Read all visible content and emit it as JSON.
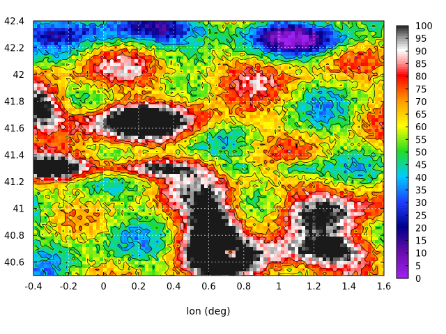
{
  "chart_data": {
    "type": "heatmap",
    "title": "",
    "xlabel": "lon (deg)",
    "ylabel": "",
    "xlim": [
      -0.4,
      1.6
    ],
    "ylim": [
      40.5,
      42.4
    ],
    "x_ticks": [
      "-0.4",
      "-0.2",
      "0",
      "0.2",
      "0.4",
      "0.6",
      "0.8",
      "1",
      "1.2",
      "1.4",
      "1.6"
    ],
    "y_ticks": [
      "40.6",
      "40.8",
      "41",
      "41.2",
      "41.4",
      "41.6",
      "41.8",
      "42",
      "42.2",
      "42.4"
    ],
    "grid": true,
    "colorbar": {
      "range": [
        0,
        100
      ],
      "ticks": [
        "0",
        "5",
        "10",
        "15",
        "20",
        "25",
        "30",
        "35",
        "40",
        "45",
        "50",
        "55",
        "60",
        "65",
        "70",
        "75",
        "80",
        "85",
        "90",
        "95",
        "100"
      ],
      "palette": [
        {
          "value": 0,
          "color": "#a020f0"
        },
        {
          "value": 10,
          "color": "#6a0dad"
        },
        {
          "value": 20,
          "color": "#00008b"
        },
        {
          "value": 30,
          "color": "#1f3fff"
        },
        {
          "value": 40,
          "color": "#00ccff"
        },
        {
          "value": 50,
          "color": "#22dd22"
        },
        {
          "value": 60,
          "color": "#ffff00"
        },
        {
          "value": 70,
          "color": "#ff9900"
        },
        {
          "value": 80,
          "color": "#ff0000"
        },
        {
          "value": 85,
          "color": "#ff9999"
        },
        {
          "value": 90,
          "color": "#ffffff"
        },
        {
          "value": 95,
          "color": "#999999"
        },
        {
          "value": 100,
          "color": "#1a1a1a"
        }
      ]
    },
    "regions": [
      {
        "name": "dark-upper-left-band",
        "lon_range": [
          -0.4,
          0.9
        ],
        "lat_range": [
          41.35,
          41.85
        ],
        "value": 98
      },
      {
        "name": "dark-center-south",
        "lon_range": [
          0.3,
          1.0
        ],
        "lat_range": [
          40.5,
          41.2
        ],
        "value": 97
      },
      {
        "name": "dark-southeast",
        "lon_range": [
          1.2,
          1.6
        ],
        "lat_range": [
          40.5,
          40.8
        ],
        "value": 95
      },
      {
        "name": "red-east",
        "lon_range": [
          1.0,
          1.6
        ],
        "lat_range": [
          40.8,
          41.2
        ],
        "value": 82
      },
      {
        "name": "blue-north",
        "lon_range": [
          -0.3,
          1.5
        ],
        "lat_range": [
          42.1,
          42.4
        ],
        "value": 25
      }
    ]
  }
}
